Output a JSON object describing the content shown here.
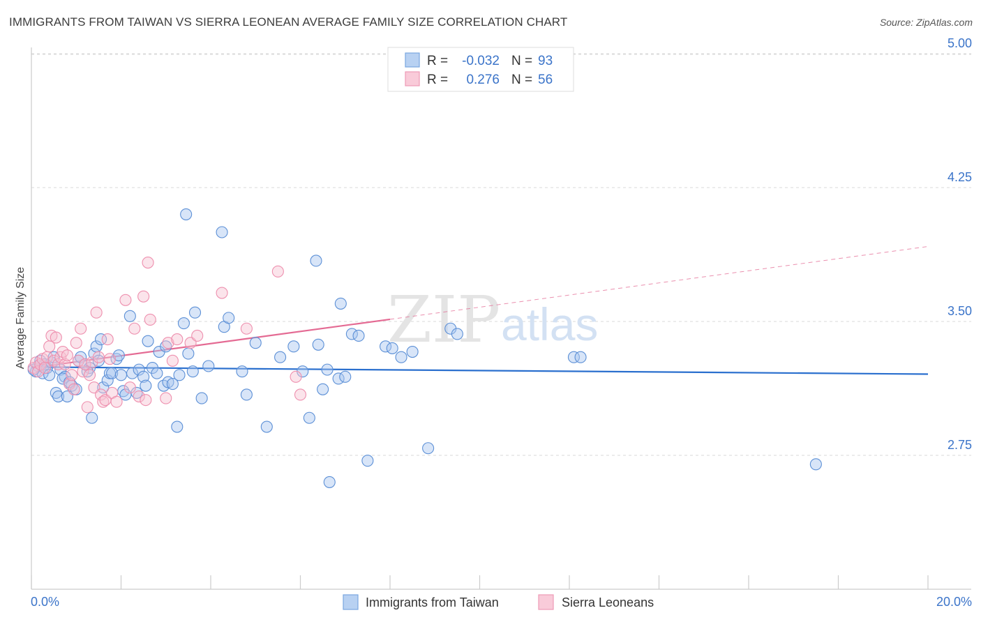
{
  "header": {
    "title": "IMMIGRANTS FROM TAIWAN VS SIERRA LEONEAN AVERAGE FAMILY SIZE CORRELATION CHART",
    "source": "Source: ZipAtlas.com"
  },
  "watermark": {
    "zip": "ZIP",
    "atlas": "atlas"
  },
  "colors": {
    "blue": "#5b8fd6",
    "blue_fill": "#a9c6ef",
    "blue_line": "#2a6fce",
    "pink": "#ee8fae",
    "pink_fill": "#f7c3d3",
    "pink_line": "#e46a93",
    "value_text": "#3b74c9",
    "grid": "#d9d9d9"
  },
  "legend": {
    "rows": [
      {
        "r_label": "R =",
        "r_value": "-0.032",
        "n_label": "N =",
        "n_value": "93",
        "color": "blue"
      },
      {
        "r_label": "R =",
        "r_value": "0.276",
        "n_label": "N =",
        "n_value": "56",
        "color": "pink"
      }
    ],
    "bottom": [
      {
        "label": "Immigrants from Taiwan",
        "color": "blue"
      },
      {
        "label": "Sierra Leoneans",
        "color": "pink"
      }
    ]
  },
  "chart_data": {
    "type": "scatter",
    "title": "IMMIGRANTS FROM TAIWAN VS SIERRA LEONEAN AVERAGE FAMILY SIZE CORRELATION CHART",
    "xlabel": "",
    "ylabel": "Average Family Size",
    "xlim": [
      0,
      20
    ],
    "ylim": [
      2.0,
      5.2
    ],
    "x_tick_labels": [
      "0.0%",
      "20.0%"
    ],
    "y_ticks": [
      2.75,
      3.5,
      4.25,
      5.0
    ],
    "y_tick_labels": [
      "2.75",
      "3.50",
      "4.25",
      "5.00"
    ],
    "grid": true,
    "legend_placement": "top-center",
    "series": [
      {
        "name": "Immigrants from Taiwan",
        "color": "blue",
        "trend": {
          "x0": 0,
          "y0": 3.245,
          "x1": 20,
          "y1": 3.205,
          "dashed_from": null
        },
        "points": [
          [
            0.1,
            3.22
          ],
          [
            0.15,
            3.25
          ],
          [
            0.2,
            3.28
          ],
          [
            0.25,
            3.21
          ],
          [
            0.3,
            3.26
          ],
          [
            0.35,
            3.24
          ],
          [
            0.4,
            3.2
          ],
          [
            0.45,
            3.27
          ],
          [
            0.55,
            3.1
          ],
          [
            0.6,
            3.08
          ],
          [
            0.65,
            3.23
          ],
          [
            0.75,
            3.19
          ],
          [
            0.8,
            3.08
          ],
          [
            0.9,
            3.14
          ],
          [
            1.0,
            3.12
          ],
          [
            1.05,
            3.28
          ],
          [
            1.1,
            3.3
          ],
          [
            1.2,
            3.26
          ],
          [
            1.3,
            3.24
          ],
          [
            1.35,
            2.96
          ],
          [
            1.4,
            3.32
          ],
          [
            1.45,
            3.36
          ],
          [
            1.5,
            3.28
          ],
          [
            1.55,
            3.4
          ],
          [
            1.6,
            3.13
          ],
          [
            1.7,
            3.17
          ],
          [
            1.75,
            3.21
          ],
          [
            1.8,
            3.21
          ],
          [
            1.9,
            3.29
          ],
          [
            1.95,
            3.31
          ],
          [
            2.05,
            3.11
          ],
          [
            2.1,
            3.09
          ],
          [
            2.2,
            3.53
          ],
          [
            2.25,
            3.21
          ],
          [
            2.35,
            3.1
          ],
          [
            2.4,
            3.23
          ],
          [
            2.5,
            3.19
          ],
          [
            2.55,
            3.14
          ],
          [
            2.6,
            3.39
          ],
          [
            2.7,
            3.24
          ],
          [
            2.8,
            3.21
          ],
          [
            2.85,
            3.33
          ],
          [
            2.95,
            3.14
          ],
          [
            3.0,
            3.36
          ],
          [
            3.05,
            3.16
          ],
          [
            3.15,
            3.15
          ],
          [
            3.25,
            2.91
          ],
          [
            3.3,
            3.2
          ],
          [
            3.4,
            3.49
          ],
          [
            3.45,
            4.1
          ],
          [
            3.5,
            3.32
          ],
          [
            3.6,
            3.22
          ],
          [
            3.65,
            3.55
          ],
          [
            3.8,
            3.07
          ],
          [
            3.95,
            3.25
          ],
          [
            4.25,
            4.0
          ],
          [
            4.3,
            3.47
          ],
          [
            4.4,
            3.52
          ],
          [
            4.7,
            3.22
          ],
          [
            4.8,
            3.09
          ],
          [
            5.0,
            3.38
          ],
          [
            5.25,
            2.91
          ],
          [
            5.55,
            3.3
          ],
          [
            5.85,
            3.36
          ],
          [
            6.05,
            3.22
          ],
          [
            6.2,
            2.96
          ],
          [
            6.35,
            3.84
          ],
          [
            6.4,
            3.37
          ],
          [
            6.5,
            3.12
          ],
          [
            6.6,
            3.23
          ],
          [
            6.65,
            2.6
          ],
          [
            6.85,
            3.18
          ],
          [
            6.9,
            3.6
          ],
          [
            7.0,
            3.19
          ],
          [
            7.15,
            3.43
          ],
          [
            7.3,
            3.42
          ],
          [
            7.5,
            2.72
          ],
          [
            7.9,
            3.36
          ],
          [
            8.05,
            3.35
          ],
          [
            8.25,
            3.3
          ],
          [
            8.5,
            3.33
          ],
          [
            8.85,
            2.79
          ],
          [
            9.35,
            3.46
          ],
          [
            9.5,
            3.43
          ],
          [
            12.1,
            3.3
          ],
          [
            12.25,
            3.3
          ],
          [
            17.5,
            2.7
          ],
          [
            0.05,
            3.23
          ],
          [
            0.5,
            3.3
          ],
          [
            0.7,
            3.18
          ],
          [
            1.25,
            3.22
          ],
          [
            2.0,
            3.2
          ],
          [
            0.85,
            3.16
          ]
        ]
      },
      {
        "name": "Sierra Leoneans",
        "color": "pink",
        "trend": {
          "x0": 0,
          "y0": 3.24,
          "x1": 20,
          "y1": 3.92,
          "dashed_from": 8.0
        },
        "points": [
          [
            0.05,
            3.24
          ],
          [
            0.1,
            3.27
          ],
          [
            0.15,
            3.22
          ],
          [
            0.2,
            3.26
          ],
          [
            0.25,
            3.29
          ],
          [
            0.3,
            3.24
          ],
          [
            0.35,
            3.3
          ],
          [
            0.4,
            3.36
          ],
          [
            0.45,
            3.42
          ],
          [
            0.5,
            3.28
          ],
          [
            0.55,
            3.41
          ],
          [
            0.6,
            3.26
          ],
          [
            0.65,
            3.3
          ],
          [
            0.7,
            3.33
          ],
          [
            0.75,
            3.26
          ],
          [
            0.8,
            3.31
          ],
          [
            0.85,
            3.15
          ],
          [
            0.9,
            3.2
          ],
          [
            0.95,
            3.12
          ],
          [
            1.0,
            3.38
          ],
          [
            1.05,
            3.28
          ],
          [
            1.1,
            3.46
          ],
          [
            1.15,
            3.22
          ],
          [
            1.2,
            3.26
          ],
          [
            1.25,
            3.02
          ],
          [
            1.3,
            3.2
          ],
          [
            1.35,
            3.27
          ],
          [
            1.4,
            3.13
          ],
          [
            1.45,
            3.55
          ],
          [
            1.5,
            3.3
          ],
          [
            1.55,
            3.09
          ],
          [
            1.6,
            3.05
          ],
          [
            1.65,
            3.06
          ],
          [
            1.7,
            3.4
          ],
          [
            1.75,
            3.29
          ],
          [
            1.8,
            3.1
          ],
          [
            1.9,
            3.05
          ],
          [
            2.1,
            3.62
          ],
          [
            2.2,
            3.13
          ],
          [
            2.3,
            3.46
          ],
          [
            2.4,
            3.08
          ],
          [
            2.5,
            3.64
          ],
          [
            2.55,
            3.06
          ],
          [
            2.6,
            3.83
          ],
          [
            2.65,
            3.51
          ],
          [
            3.0,
            3.07
          ],
          [
            3.05,
            3.38
          ],
          [
            3.15,
            3.28
          ],
          [
            3.25,
            3.4
          ],
          [
            3.55,
            3.38
          ],
          [
            3.7,
            3.42
          ],
          [
            4.25,
            3.66
          ],
          [
            4.8,
            3.46
          ],
          [
            5.5,
            3.78
          ],
          [
            5.9,
            3.19
          ],
          [
            6.0,
            3.09
          ]
        ]
      }
    ]
  }
}
